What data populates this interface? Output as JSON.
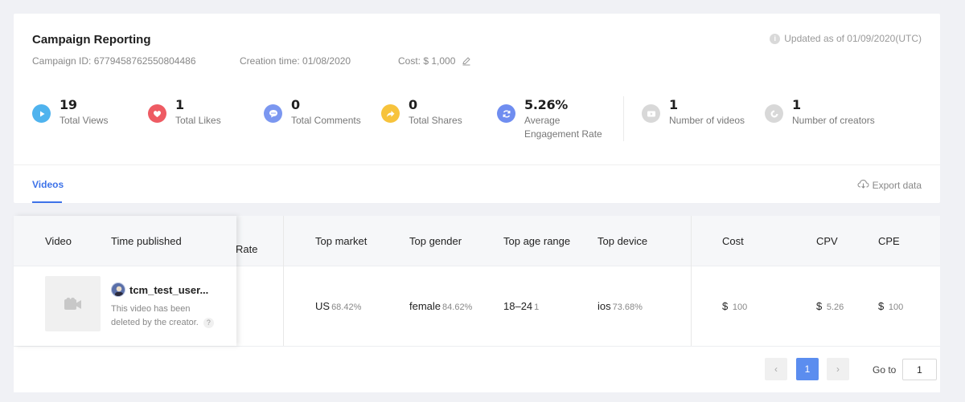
{
  "header": {
    "title": "Campaign Reporting",
    "updated": "Updated as of 01/09/2020(UTC)",
    "campaign_id": "Campaign ID: 6779458762550804486",
    "creation_time": "Creation time: 01/08/2020",
    "cost": "Cost: $ 1,000"
  },
  "metrics": [
    {
      "value": "19",
      "label": "Total Views",
      "color": "#4fb3ee",
      "icon": "play-icon"
    },
    {
      "value": "1",
      "label": "Total Likes",
      "color": "#ee5b63",
      "icon": "heart-icon"
    },
    {
      "value": "0",
      "label": "Total Comments",
      "color": "#7b97f0",
      "icon": "comment-icon"
    },
    {
      "value": "0",
      "label": "Total Shares",
      "color": "#f7c33c",
      "icon": "share-icon"
    },
    {
      "value": "5.26%",
      "label_line1": "Average",
      "label_line2": "Engagement Rate",
      "color": "#6f8df0",
      "icon": "refresh-icon"
    },
    {
      "value": "1",
      "label": "Number of videos",
      "color": "#d8d8d8",
      "icon": "video-icon"
    },
    {
      "value": "1",
      "label": "Number of creators",
      "color": "#d8d8d8",
      "icon": "creator-icon"
    }
  ],
  "tabs": {
    "videos": "Videos",
    "export": "Export data"
  },
  "table": {
    "headers": {
      "video": "Video",
      "time_published": "Time published",
      "rate_partial": "Rate",
      "top_market": "Top market",
      "top_gender": "Top gender",
      "top_age_range": "Top age range",
      "top_device": "Top device",
      "cost": "Cost",
      "cpv": "CPV",
      "cpe": "CPE"
    },
    "row": {
      "creator": "tcm_test_user...",
      "deleted_note_1": "This video has been",
      "deleted_note_2": "deleted by the creator.",
      "help": "?",
      "market": "US",
      "market_pct": "68.42%",
      "gender": "female",
      "gender_pct": "84.62%",
      "age": "18–24",
      "age_count": "1",
      "device": "ios",
      "device_pct": "73.68%",
      "cost_sym": "$",
      "cost_val": "100",
      "cpv_sym": "$",
      "cpv_val": "5.26",
      "cpe_sym": "$",
      "cpe_val": "100"
    }
  },
  "pagination": {
    "prev": "‹",
    "current": "1",
    "next": "›",
    "goto_label": "Go to",
    "goto_value": "1"
  }
}
